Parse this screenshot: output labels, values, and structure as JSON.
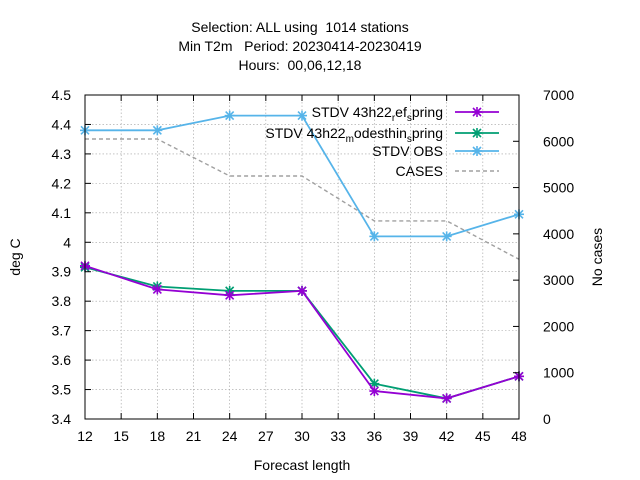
{
  "chart_data": {
    "type": "line",
    "title_lines": [
      "Selection: ALL using  1014 stations",
      "Min T2m   Period: 20230414-20230419",
      "Hours:  00,06,12,18"
    ],
    "xlabel": "Forecast length",
    "ylabel": "deg C",
    "y2label": "No cases",
    "xlim": [
      12,
      48
    ],
    "ylim": [
      3.4,
      4.5
    ],
    "y2lim": [
      0,
      7000
    ],
    "xticks": [
      12,
      15,
      18,
      21,
      24,
      27,
      30,
      33,
      36,
      39,
      42,
      45,
      48
    ],
    "yticks": [
      "3.4",
      "3.5",
      "3.6",
      "3.7",
      "3.8",
      "3.9",
      "4",
      "4.1",
      "4.2",
      "4.3",
      "4.4",
      "4.5"
    ],
    "y2ticks": [
      "0",
      "1000",
      "2000",
      "3000",
      "4000",
      "5000",
      "6000",
      "7000"
    ],
    "grid": true,
    "legend_position": "top-right",
    "x": [
      12,
      18,
      24,
      30,
      36,
      42,
      48
    ],
    "series": [
      {
        "legend_parts": [
          {
            "t": "STDV 43h22",
            "sub": false
          },
          {
            "t": "r",
            "sub": true
          },
          {
            "t": "ef",
            "sub": false
          },
          {
            "t": "s",
            "sub": true
          },
          {
            "t": "pring",
            "sub": false
          }
        ],
        "values": [
          3.92,
          3.84,
          3.82,
          3.835,
          3.495,
          3.47,
          3.545
        ],
        "color": "#9400d3",
        "axis": "y",
        "marker": "x"
      },
      {
        "legend_parts": [
          {
            "t": "STDV 43h22",
            "sub": false
          },
          {
            "t": "m",
            "sub": true
          },
          {
            "t": "odesthin",
            "sub": false
          },
          {
            "t": "s",
            "sub": true
          },
          {
            "t": "pring",
            "sub": false
          }
        ],
        "values": [
          3.915,
          3.85,
          3.835,
          3.835,
          3.52,
          3.47,
          3.545
        ],
        "color": "#009e73",
        "axis": "y",
        "marker": "x"
      },
      {
        "legend_parts": [
          {
            "t": "STDV OBS",
            "sub": false
          }
        ],
        "values": [
          4.38,
          4.38,
          4.43,
          4.43,
          4.02,
          4.02,
          4.095
        ],
        "color": "#56b4e9",
        "axis": "y",
        "marker": "x"
      },
      {
        "legend_parts": [
          {
            "t": "CASES",
            "sub": false
          }
        ],
        "values": [
          6050,
          6050,
          5250,
          5250,
          4280,
          4280,
          3450
        ],
        "color": "#a0a0a0",
        "axis": "y2",
        "dashed": true
      }
    ]
  }
}
